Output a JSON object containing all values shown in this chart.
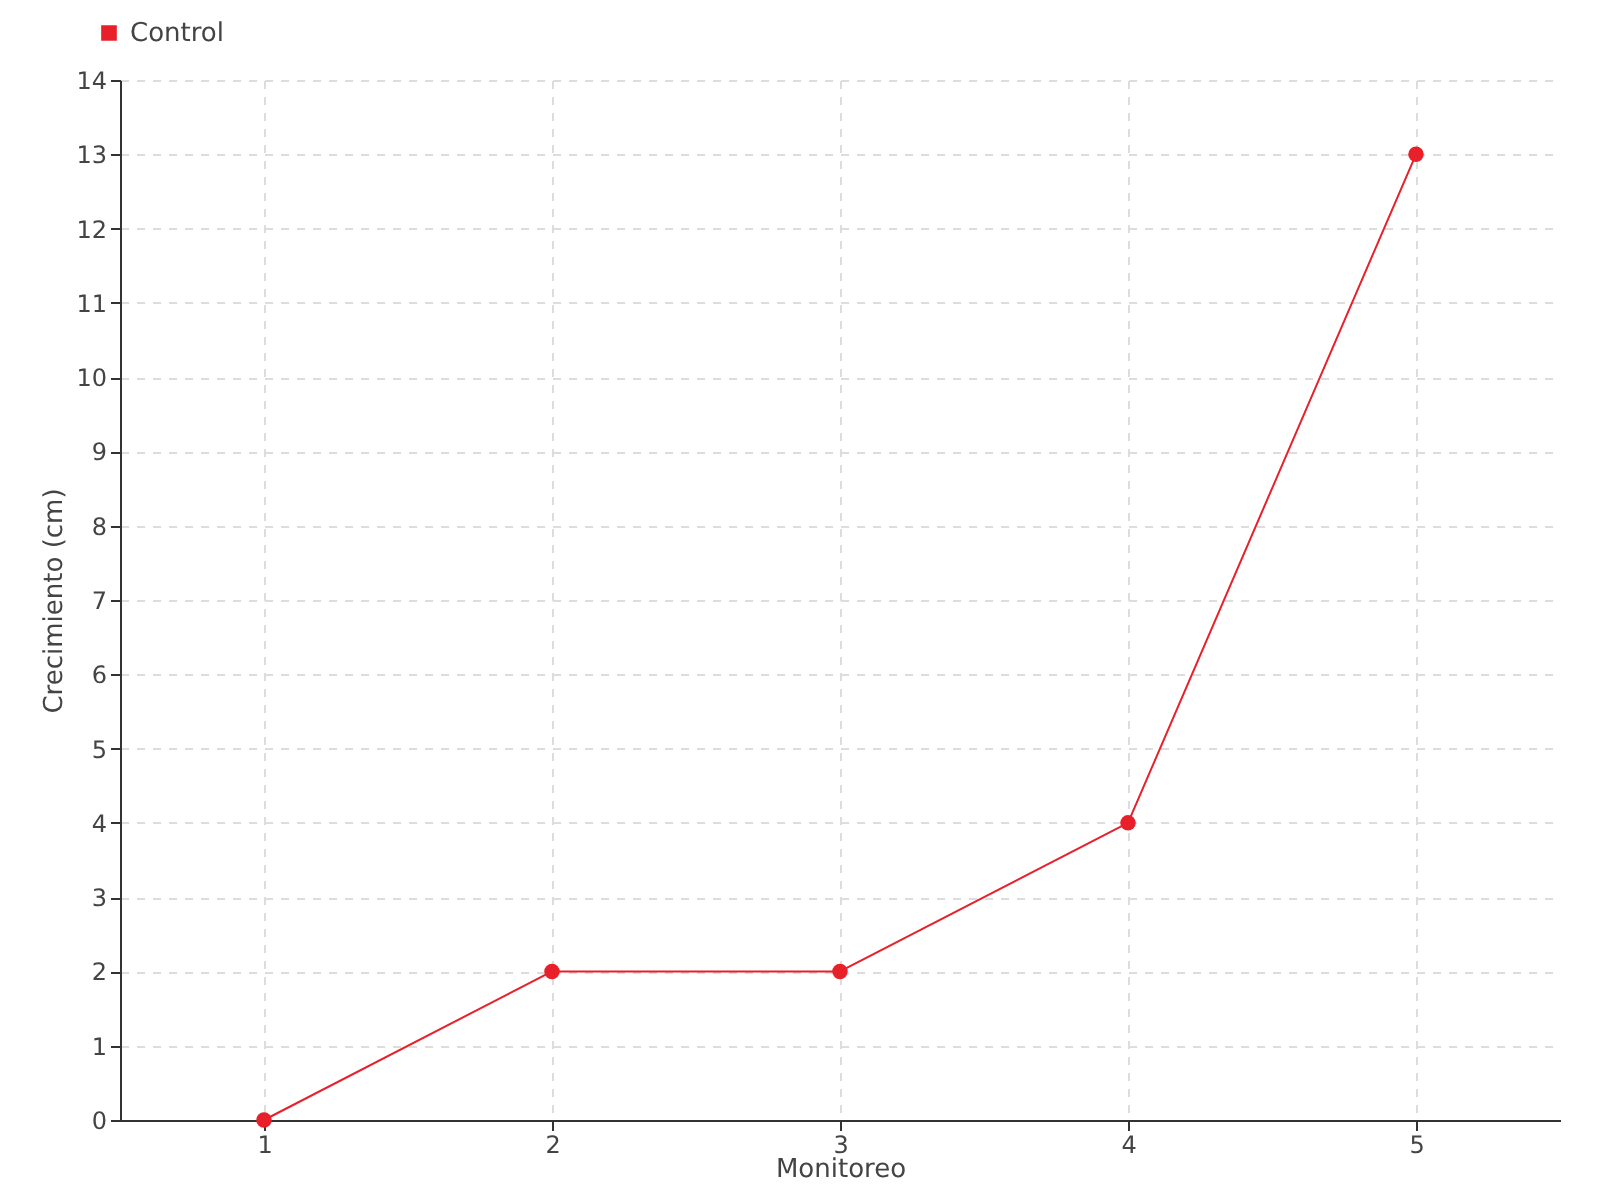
{
  "chart_data": {
    "type": "line",
    "xlabel": "Monitoreo",
    "ylabel": "Crecimiento (cm)",
    "categories": [
      "1",
      "2",
      "3",
      "4",
      "5"
    ],
    "series": [
      {
        "name": "Control",
        "color": "#e8202a",
        "values": [
          0,
          2,
          2,
          4,
          13
        ]
      }
    ],
    "ylim": [
      0,
      14
    ],
    "yticks": [
      0,
      1,
      2,
      3,
      4,
      5,
      6,
      7,
      8,
      9,
      10,
      11,
      12,
      13,
      14
    ],
    "grid": true,
    "legend": "top left",
    "marker": "circle",
    "line_style": "solid"
  }
}
